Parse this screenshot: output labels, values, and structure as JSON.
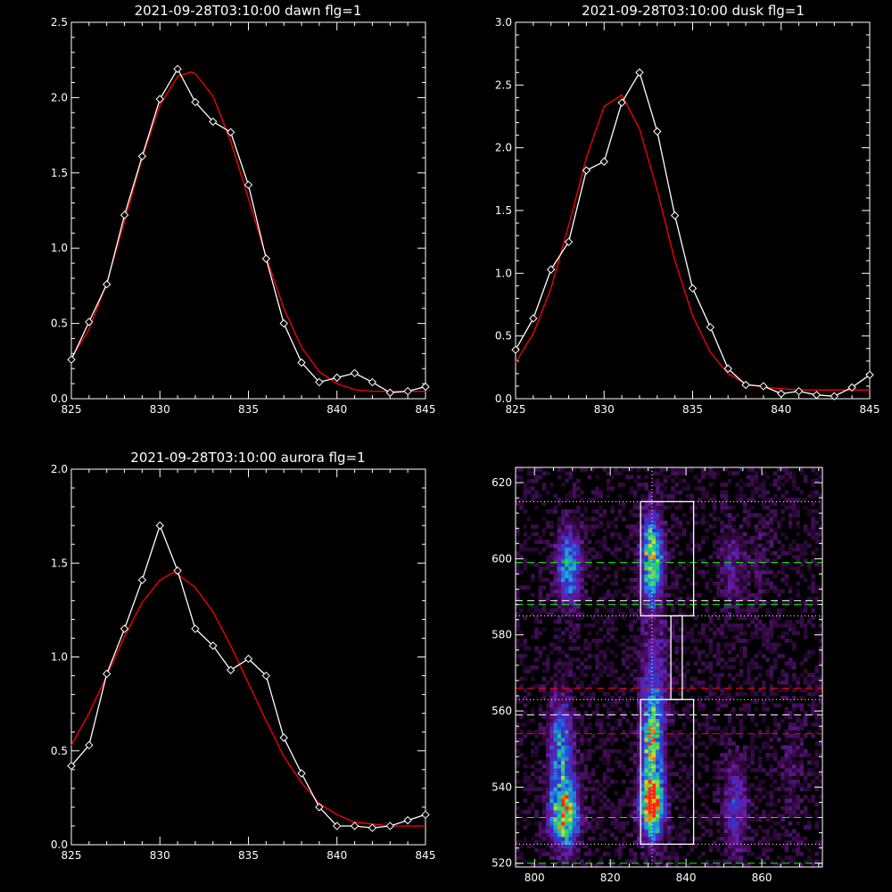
{
  "chart_data": [
    {
      "type": "line",
      "title": "2021-09-28T03:10:00 dawn flg=1",
      "xlim": [
        825,
        845
      ],
      "ylim": [
        0,
        2.5
      ],
      "xticks": [
        "825",
        "830",
        "835",
        "840",
        "845"
      ],
      "yticks": [
        "0.0",
        "0.5",
        "1.0",
        "1.5",
        "2.0",
        "2.5"
      ],
      "series": [
        {
          "color": "#ffffff",
          "marker": "diamond",
          "x": [
            825,
            826,
            827,
            828,
            829,
            830,
            831,
            832,
            833,
            834,
            835,
            836,
            837,
            838,
            839,
            840,
            841,
            842,
            843,
            844,
            845
          ],
          "y": [
            0.26,
            0.51,
            0.76,
            1.22,
            1.61,
            1.99,
            2.19,
            1.97,
            1.84,
            1.77,
            1.42,
            0.93,
            0.5,
            0.24,
            0.11,
            0.14,
            0.17,
            0.11,
            0.04,
            0.05,
            0.08
          ]
        },
        {
          "color": "#ff0000",
          "x": [
            825,
            826,
            827,
            828,
            829,
            830,
            831,
            831.75,
            832,
            833,
            834,
            835,
            836,
            837,
            838,
            839,
            840,
            841,
            842,
            843,
            844,
            845
          ],
          "y": [
            0.27,
            0.46,
            0.77,
            1.18,
            1.6,
            1.95,
            2.14,
            2.17,
            2.16,
            2.01,
            1.71,
            1.33,
            0.94,
            0.6,
            0.34,
            0.18,
            0.1,
            0.06,
            0.05,
            0.05,
            0.05,
            0.05
          ]
        }
      ]
    },
    {
      "type": "line",
      "title": "2021-09-28T03:10:00 dusk flg=1",
      "xlim": [
        825,
        845
      ],
      "ylim": [
        0,
        3
      ],
      "xticks": [
        "825",
        "830",
        "835",
        "840",
        "845"
      ],
      "yticks": [
        "0.0",
        "0.5",
        "1.0",
        "1.5",
        "2.0",
        "2.5",
        "3.0"
      ],
      "series": [
        {
          "color": "#ffffff",
          "marker": "diamond",
          "x": [
            825,
            826,
            827,
            828,
            829,
            830,
            831,
            832,
            833,
            834,
            835,
            836,
            837,
            838,
            839,
            840,
            841,
            842,
            843,
            844,
            845
          ],
          "y": [
            0.39,
            0.64,
            1.03,
            1.25,
            1.82,
            1.89,
            2.36,
            2.6,
            2.13,
            1.46,
            0.88,
            0.57,
            0.24,
            0.11,
            0.1,
            0.04,
            0.06,
            0.03,
            0.02,
            0.09,
            0.19
          ]
        },
        {
          "color": "#ff0000",
          "x": [
            825,
            826,
            827,
            828,
            829,
            830,
            831,
            832,
            833,
            834,
            835,
            836,
            837,
            838,
            839,
            840,
            841,
            842,
            843,
            844,
            845
          ],
          "y": [
            0.29,
            0.52,
            0.88,
            1.38,
            1.92,
            2.33,
            2.42,
            2.15,
            1.66,
            1.1,
            0.66,
            0.37,
            0.2,
            0.12,
            0.09,
            0.08,
            0.07,
            0.07,
            0.07,
            0.07,
            0.07
          ]
        }
      ]
    },
    {
      "type": "line",
      "title": "2021-09-28T03:10:00 aurora flg=1",
      "xlim": [
        825,
        845
      ],
      "ylim": [
        0,
        2
      ],
      "xticks": [
        "825",
        "830",
        "835",
        "840",
        "845"
      ],
      "yticks": [
        "0.0",
        "0.5",
        "1.0",
        "1.5",
        "2.0"
      ],
      "series": [
        {
          "color": "#ffffff",
          "marker": "diamond",
          "x": [
            825,
            826,
            827,
            828,
            829,
            830,
            831,
            832,
            833,
            834,
            835,
            836,
            837,
            838,
            839,
            840,
            841,
            842,
            843,
            844,
            845
          ],
          "y": [
            0.42,
            0.53,
            0.91,
            1.15,
            1.41,
            1.7,
            1.46,
            1.15,
            1.06,
            0.93,
            0.99,
            0.9,
            0.57,
            0.38,
            0.2,
            0.1,
            0.1,
            0.09,
            0.1,
            0.13,
            0.16
          ]
        },
        {
          "color": "#ff0000",
          "x": [
            825,
            826,
            827,
            828,
            829,
            830,
            830.75,
            831,
            832,
            833,
            834,
            835,
            836,
            837,
            838,
            839,
            840,
            841,
            842,
            843,
            844,
            845
          ],
          "y": [
            0.53,
            0.7,
            0.9,
            1.11,
            1.29,
            1.41,
            1.45,
            1.44,
            1.37,
            1.24,
            1.06,
            0.86,
            0.66,
            0.47,
            0.33,
            0.22,
            0.16,
            0.12,
            0.11,
            0.1,
            0.1,
            0.1
          ]
        }
      ]
    },
    {
      "type": "heatmap",
      "title": "",
      "xlim": [
        795,
        876
      ],
      "ylim": [
        519,
        624
      ],
      "xticks": [
        "800",
        "820",
        "840",
        "860"
      ],
      "yticks": [
        "520",
        "540",
        "560",
        "580",
        "600",
        "620"
      ],
      "colormap": [
        "#000000",
        "#3a0a4a",
        "#6a1aa6",
        "#2a3bd6",
        "#1f9be0",
        "#1fd07a",
        "#c8e020",
        "#ff2a10"
      ],
      "peaks": [
        {
          "x": 808,
          "y": 533,
          "sx": 2.6,
          "sy": 6,
          "amp": 0.85
        },
        {
          "x": 807,
          "y": 551,
          "sx": 2.3,
          "sy": 9,
          "amp": 0.5
        },
        {
          "x": 809,
          "y": 598,
          "sx": 2.2,
          "sy": 7,
          "amp": 0.55
        },
        {
          "x": 831,
          "y": 535,
          "sx": 2.2,
          "sy": 6,
          "amp": 1.0
        },
        {
          "x": 831,
          "y": 553,
          "sx": 2.0,
          "sy": 9,
          "amp": 0.7
        },
        {
          "x": 831,
          "y": 600,
          "sx": 2.0,
          "sy": 8,
          "amp": 0.8
        },
        {
          "x": 832,
          "y": 572,
          "sx": 2.6,
          "sy": 10,
          "amp": 0.22
        },
        {
          "x": 853,
          "y": 535,
          "sx": 2.2,
          "sy": 8,
          "amp": 0.35
        },
        {
          "x": 852,
          "y": 598,
          "sx": 2.4,
          "sy": 8,
          "amp": 0.2
        },
        {
          "x": 868,
          "y": 545,
          "sx": 3,
          "sy": 12,
          "amp": 0.1
        },
        {
          "x": 860,
          "y": 600,
          "sx": 3,
          "sy": 10,
          "amp": 0.08
        }
      ],
      "boxes": [
        {
          "x": [
            828,
            842
          ],
          "y": [
            585,
            615
          ]
        },
        {
          "x": [
            828,
            842
          ],
          "y": [
            525,
            563
          ]
        },
        {
          "x": [
            836,
            839
          ],
          "y": [
            563,
            585
          ]
        }
      ],
      "vline": {
        "x": 831,
        "color": "#ffffff",
        "dash": "dotted"
      },
      "hlines": [
        {
          "y": 615,
          "color": "#ffffff",
          "dash": "dotted"
        },
        {
          "y": 599,
          "color": "#00ff00",
          "dash": "dashed"
        },
        {
          "y": 589,
          "color": "#ffffff",
          "dash": "dashed"
        },
        {
          "y": 588,
          "color": "#00ff00",
          "dash": "dashed"
        },
        {
          "y": 585,
          "color": "#ffffff",
          "dash": "dotted"
        },
        {
          "y": 566,
          "color": "#ff0000",
          "dash": "dashed"
        },
        {
          "y": 563,
          "color": "#ffffff",
          "dash": "dotted"
        },
        {
          "y": 559,
          "color": "#ffffff",
          "dash": "dashed"
        },
        {
          "y": 554,
          "color": "#ff0000",
          "dash": "dashed"
        },
        {
          "y": 532,
          "color": "#00ff00",
          "dash": "dashed"
        },
        {
          "y": 525,
          "color": "#ffffff",
          "dash": "dotted"
        },
        {
          "y": 520,
          "color": "#00ff00",
          "dash": "dashed"
        }
      ]
    }
  ]
}
